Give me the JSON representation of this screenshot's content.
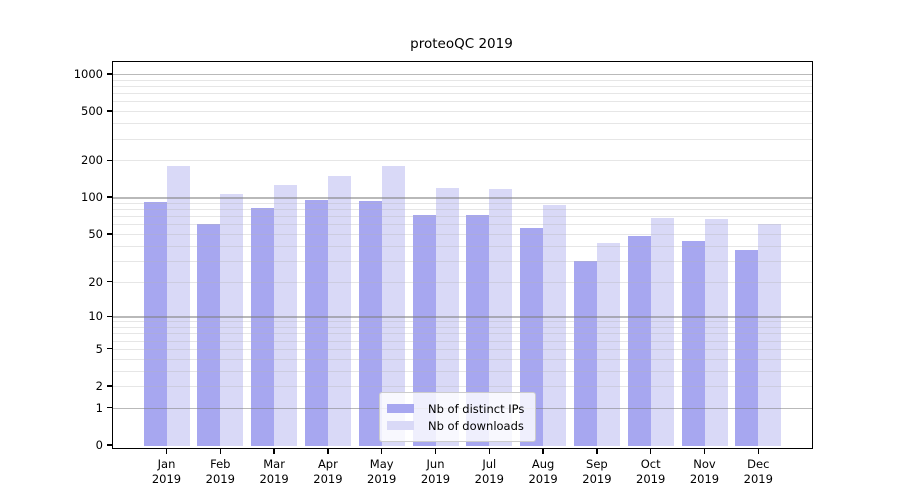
{
  "title": "proteoQC 2019",
  "chart_data": {
    "type": "bar",
    "title": "proteoQC 2019",
    "categories": [
      "Jan 2019",
      "Feb 2019",
      "Mar 2019",
      "Apr 2019",
      "May 2019",
      "Jun 2019",
      "Jul 2019",
      "Aug 2019",
      "Sep 2019",
      "Oct 2019",
      "Nov 2019",
      "Dec 2019"
    ],
    "series": [
      {
        "name": "Nb of distinct IPs",
        "color": "#a7a7f0",
        "values": [
          92,
          60,
          81,
          94,
          93,
          72,
          72,
          56,
          30,
          48,
          44,
          37
        ]
      },
      {
        "name": "Nb of downloads",
        "color": "#d9d9f7",
        "values": [
          180,
          107,
          126,
          149,
          179,
          118,
          117,
          87,
          42,
          68,
          66,
          60
        ]
      }
    ],
    "xlabel": "",
    "ylabel": "",
    "y_scale": "log1p",
    "y_ticks": [
      0,
      1,
      2,
      5,
      10,
      20,
      50,
      100,
      200,
      500,
      1000
    ],
    "ylim": [
      0,
      1000
    ],
    "grid": "horizontal; faint minor lines, gray major lines at 1, 10, 100, 1000 drawn over bars",
    "legend_position": "inside-bottom-center"
  },
  "colors": {
    "bar_distinct_ips": "#a7a7f0",
    "bar_downloads": "#d9d9f7",
    "grid_major": "#808080",
    "grid_minor": "#b2b2b2",
    "plot_border": "#000000",
    "background": "#ffffff",
    "legend_border": "#cccccc"
  }
}
